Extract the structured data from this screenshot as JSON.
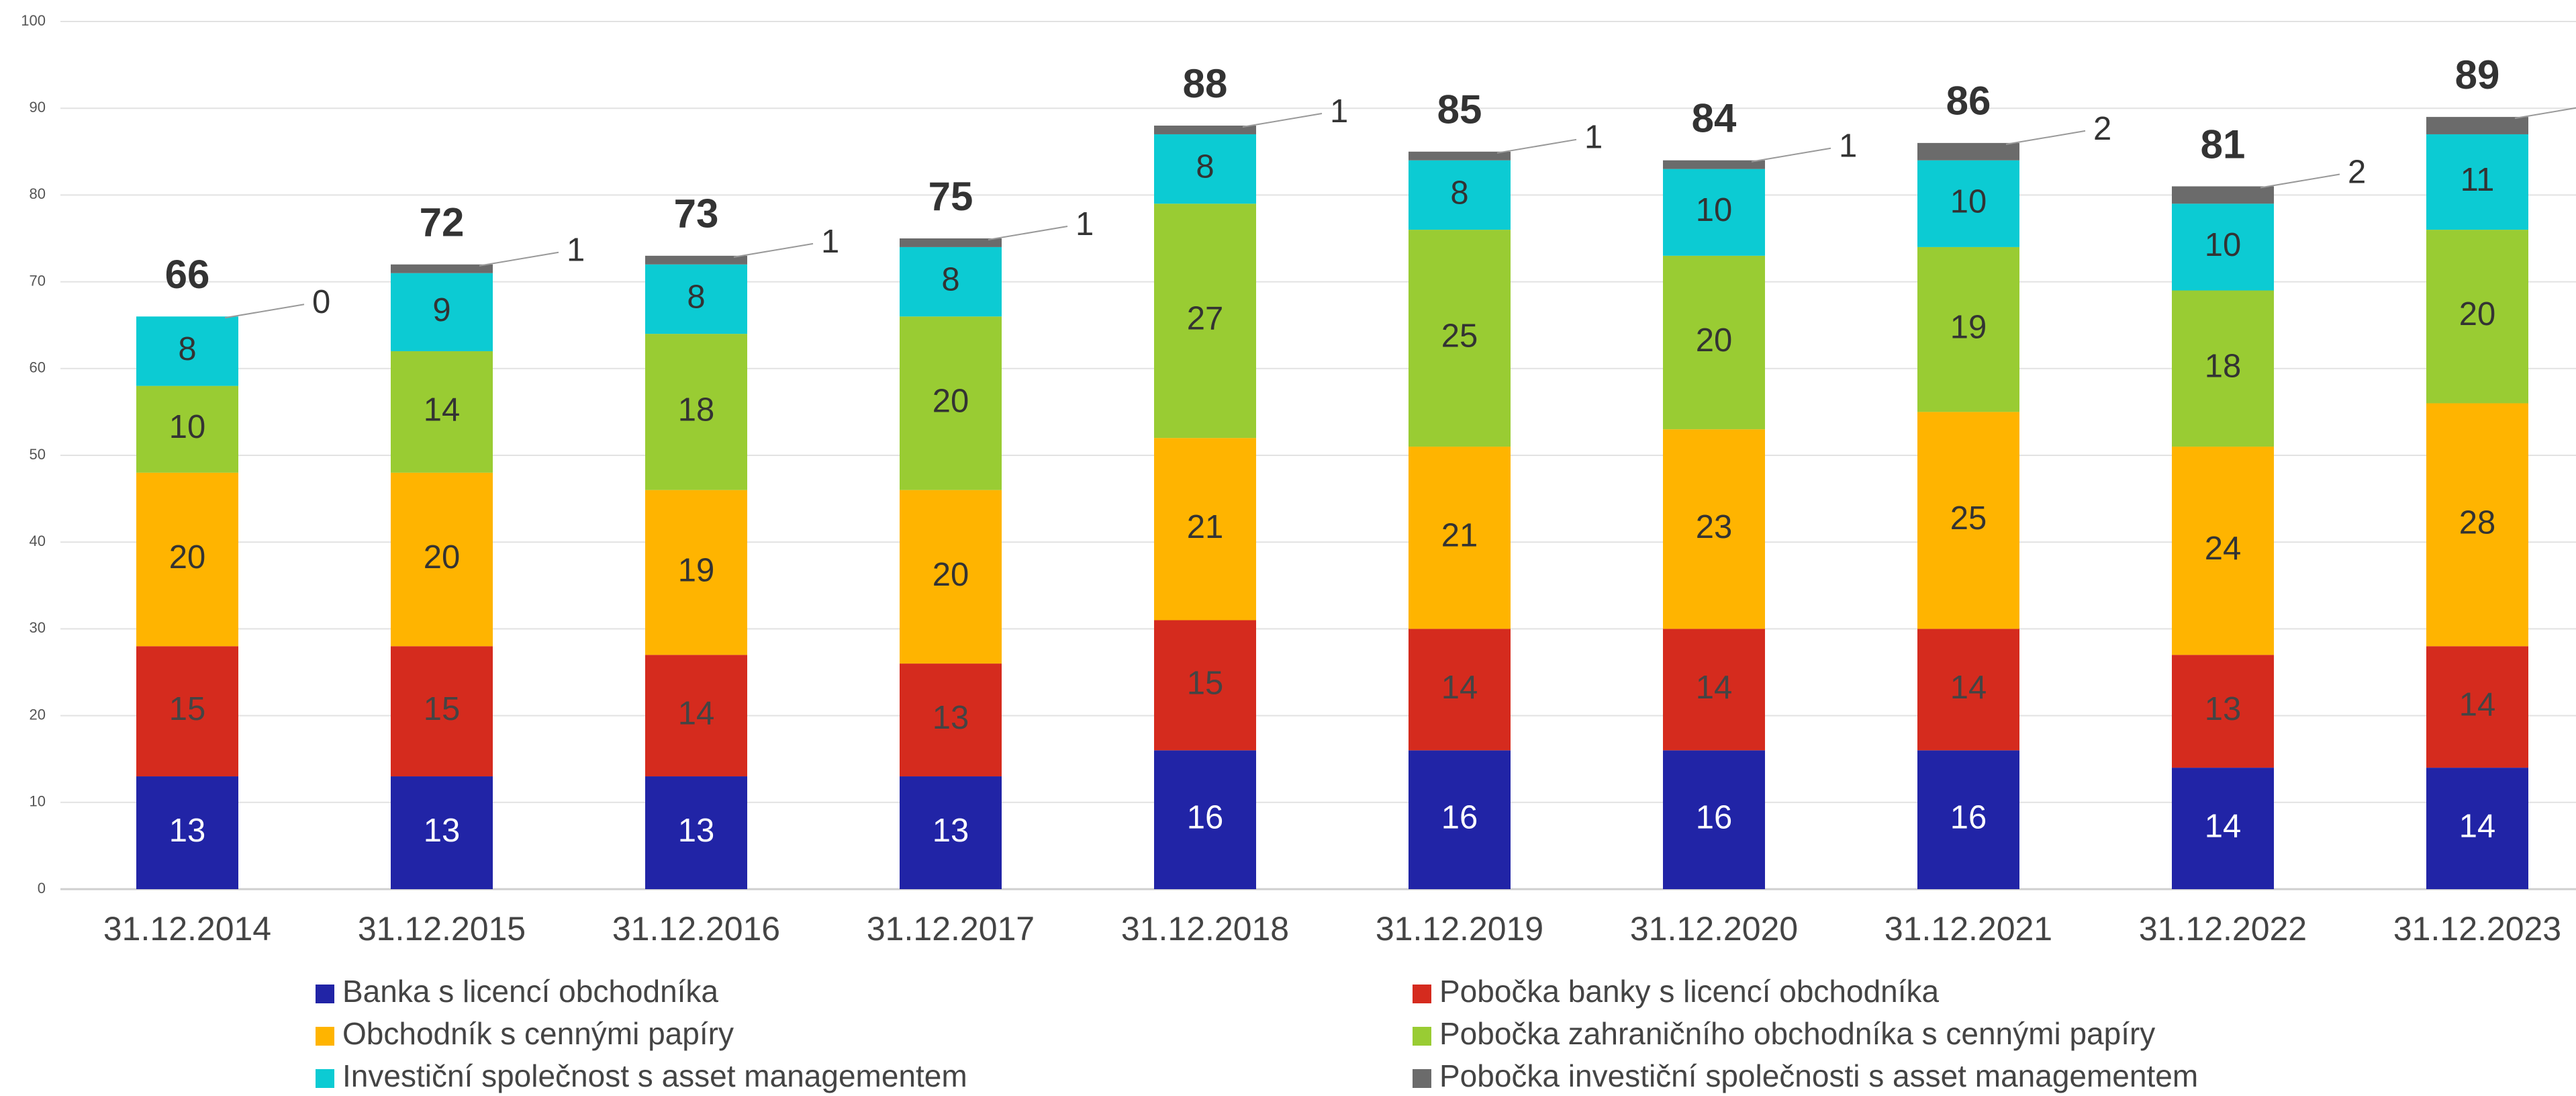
{
  "chart_data": {
    "type": "stacked_bar",
    "categories": [
      "31.12.2014",
      "31.12.2015",
      "31.12.2016",
      "31.12.2017",
      "31.12.2018",
      "31.12.2019",
      "31.12.2020",
      "31.12.2021",
      "31.12.2022",
      "31.12.2023"
    ],
    "series": [
      {
        "name": "Banka s licencí obchodníka",
        "color": "#2124a6",
        "label_color": "#ffffff",
        "values": [
          13,
          13,
          13,
          13,
          16,
          16,
          16,
          16,
          14,
          14
        ]
      },
      {
        "name": "Pobočka banky s licencí obchodníka",
        "color": "#d52b1e",
        "label_color": "#444444",
        "values": [
          15,
          15,
          14,
          13,
          15,
          14,
          14,
          14,
          13,
          14
        ]
      },
      {
        "name": "Obchodník s cennými papíry",
        "color": "#ffb400",
        "label_color": "#333333",
        "values": [
          20,
          20,
          19,
          20,
          21,
          21,
          23,
          25,
          24,
          28
        ]
      },
      {
        "name": "Pobočka zahraničního obchodníka s cennými papíry",
        "color": "#99cc33",
        "label_color": "#333333",
        "values": [
          10,
          14,
          18,
          20,
          27,
          25,
          20,
          19,
          18,
          20
        ]
      },
      {
        "name": "Investiční společnost s asset managementem",
        "color": "#0ccbd3",
        "label_color": "#333333",
        "values": [
          8,
          9,
          8,
          8,
          8,
          8,
          10,
          10,
          10,
          11
        ]
      },
      {
        "name": "Pobočka investiční společnosti s asset managementem",
        "color": "#6b6b6b",
        "label_color": "#333333",
        "values": [
          0,
          1,
          1,
          1,
          1,
          1,
          1,
          2,
          2,
          2
        ]
      }
    ],
    "totals": [
      66,
      72,
      73,
      75,
      88,
      85,
      84,
      86,
      81,
      89
    ],
    "ylim": [
      0,
      100
    ],
    "yticks": [
      0,
      10,
      20,
      30,
      40,
      50,
      60,
      70,
      80,
      90,
      100
    ],
    "grid": true
  }
}
